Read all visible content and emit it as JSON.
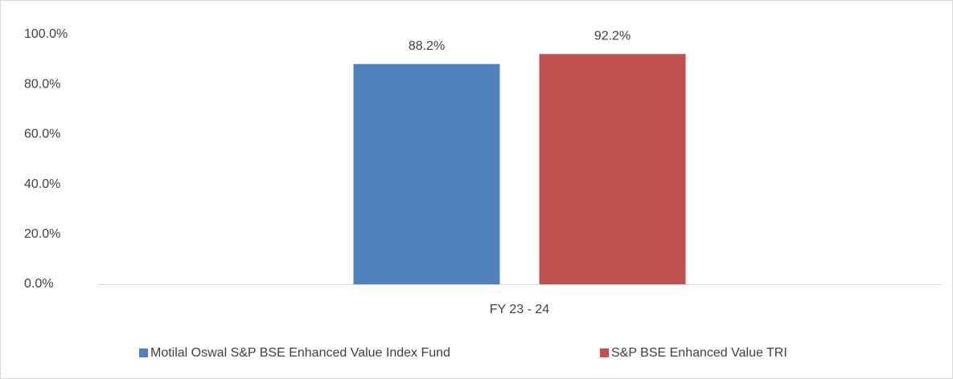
{
  "chart_data": {
    "type": "bar",
    "categories": [
      "FY 23 - 24"
    ],
    "series": [
      {
        "name": "Motilal Oswal S&P BSE Enhanced Value Index Fund",
        "color": "#4f81bd",
        "values": [
          88.2
        ],
        "value_labels": [
          "88.2%"
        ]
      },
      {
        "name": "S&P BSE Enhanced Value TRI",
        "color": "#c0504d",
        "values": [
          92.2
        ],
        "value_labels": [
          "92.2%"
        ]
      }
    ],
    "ylim": [
      0,
      100
    ],
    "yticks": [
      {
        "value": 0,
        "label": "0.0%"
      },
      {
        "value": 20,
        "label": "20.0%"
      },
      {
        "value": 40,
        "label": "40.0%"
      },
      {
        "value": 60,
        "label": "60.0%"
      },
      {
        "value": 80,
        "label": "80.0%"
      },
      {
        "value": 100,
        "label": "100.0%"
      }
    ],
    "grid": false,
    "legend": "bottom"
  }
}
